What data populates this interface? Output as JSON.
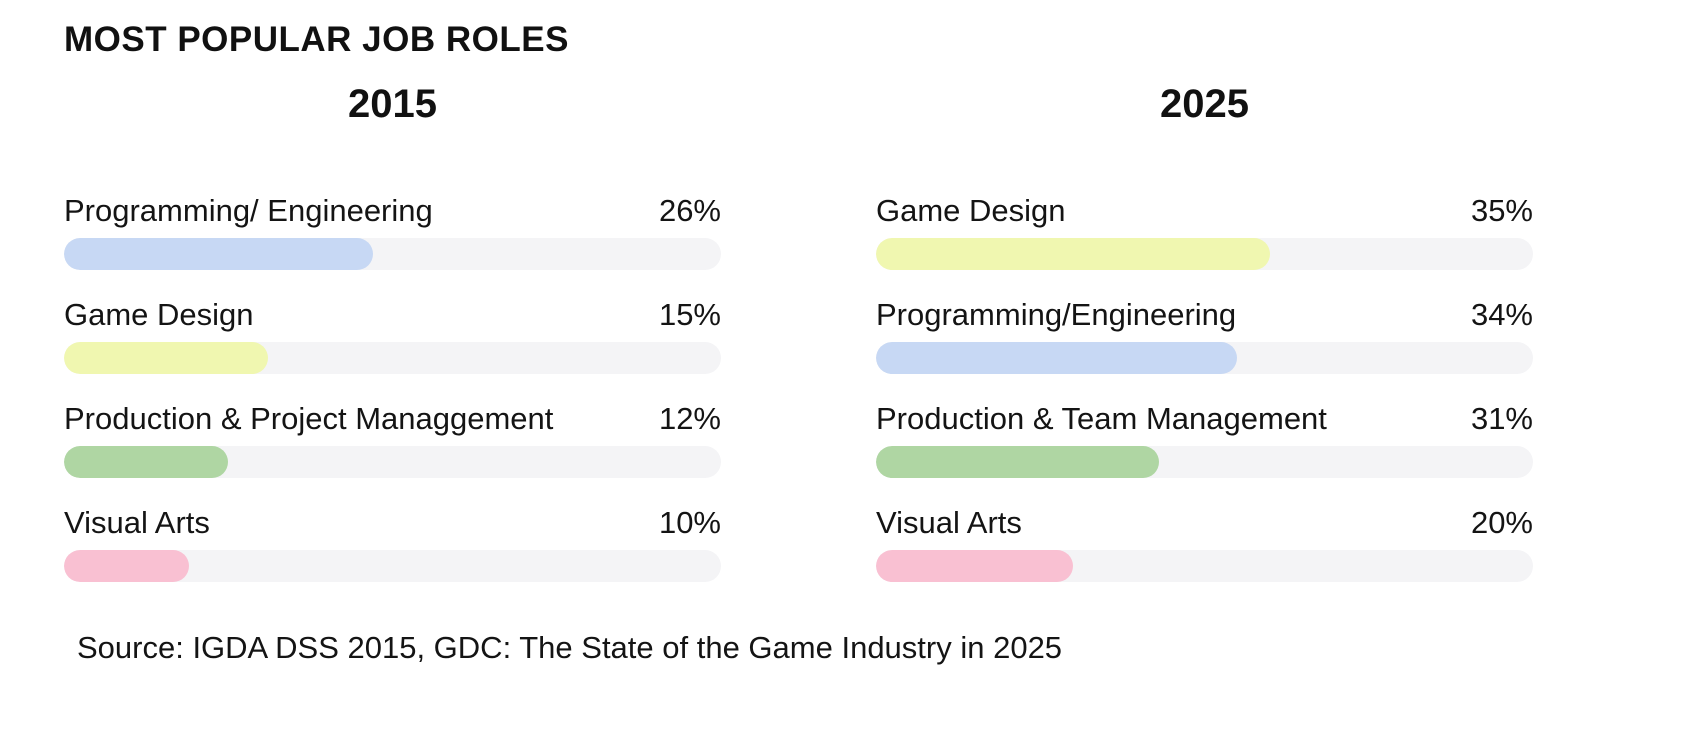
{
  "page": {
    "title": "MOST POPULAR JOB ROLES",
    "source": "Source: IGDA DSS 2015, GDC: The State of the Game Industry in 2025"
  },
  "colors": {
    "text": "#141414",
    "bar_track": "#f4f4f6",
    "blue": "#c7d8f4",
    "yellow": "#f0f7b0",
    "green": "#afd6a3",
    "pink": "#f9c0d2"
  },
  "chart_data": [
    {
      "type": "bar",
      "orientation": "horizontal",
      "title": "2015",
      "unit": "%",
      "categories": [
        "Programming/ Engineering",
        "Game Design",
        "Production & Project Managgement",
        "Visual Arts"
      ],
      "values": [
        26,
        15,
        12,
        10
      ],
      "value_labels": [
        "26%",
        "15%",
        "12%",
        "10%"
      ],
      "bar_colors": [
        "#c7d8f4",
        "#f0f7b0",
        "#afd6a3",
        "#f9c0d2"
      ],
      "bar_color_names": [
        "blue",
        "yellow",
        "green",
        "pink"
      ],
      "fill_pct_of_track": [
        47,
        31,
        25,
        19
      ],
      "grid": false,
      "legend": false
    },
    {
      "type": "bar",
      "orientation": "horizontal",
      "title": "2025",
      "unit": "%",
      "categories": [
        "Game Design",
        "Programming/Engineering",
        "Production & Team Management",
        "Visual Arts"
      ],
      "values": [
        35,
        34,
        31,
        20
      ],
      "value_labels": [
        "35%",
        "34%",
        "31%",
        "20%"
      ],
      "bar_colors": [
        "#f0f7b0",
        "#c7d8f4",
        "#afd6a3",
        "#f9c0d2"
      ],
      "bar_color_names": [
        "yellow",
        "blue",
        "green",
        "pink"
      ],
      "fill_pct_of_track": [
        60,
        55,
        43,
        30
      ],
      "grid": false,
      "legend": false
    }
  ]
}
